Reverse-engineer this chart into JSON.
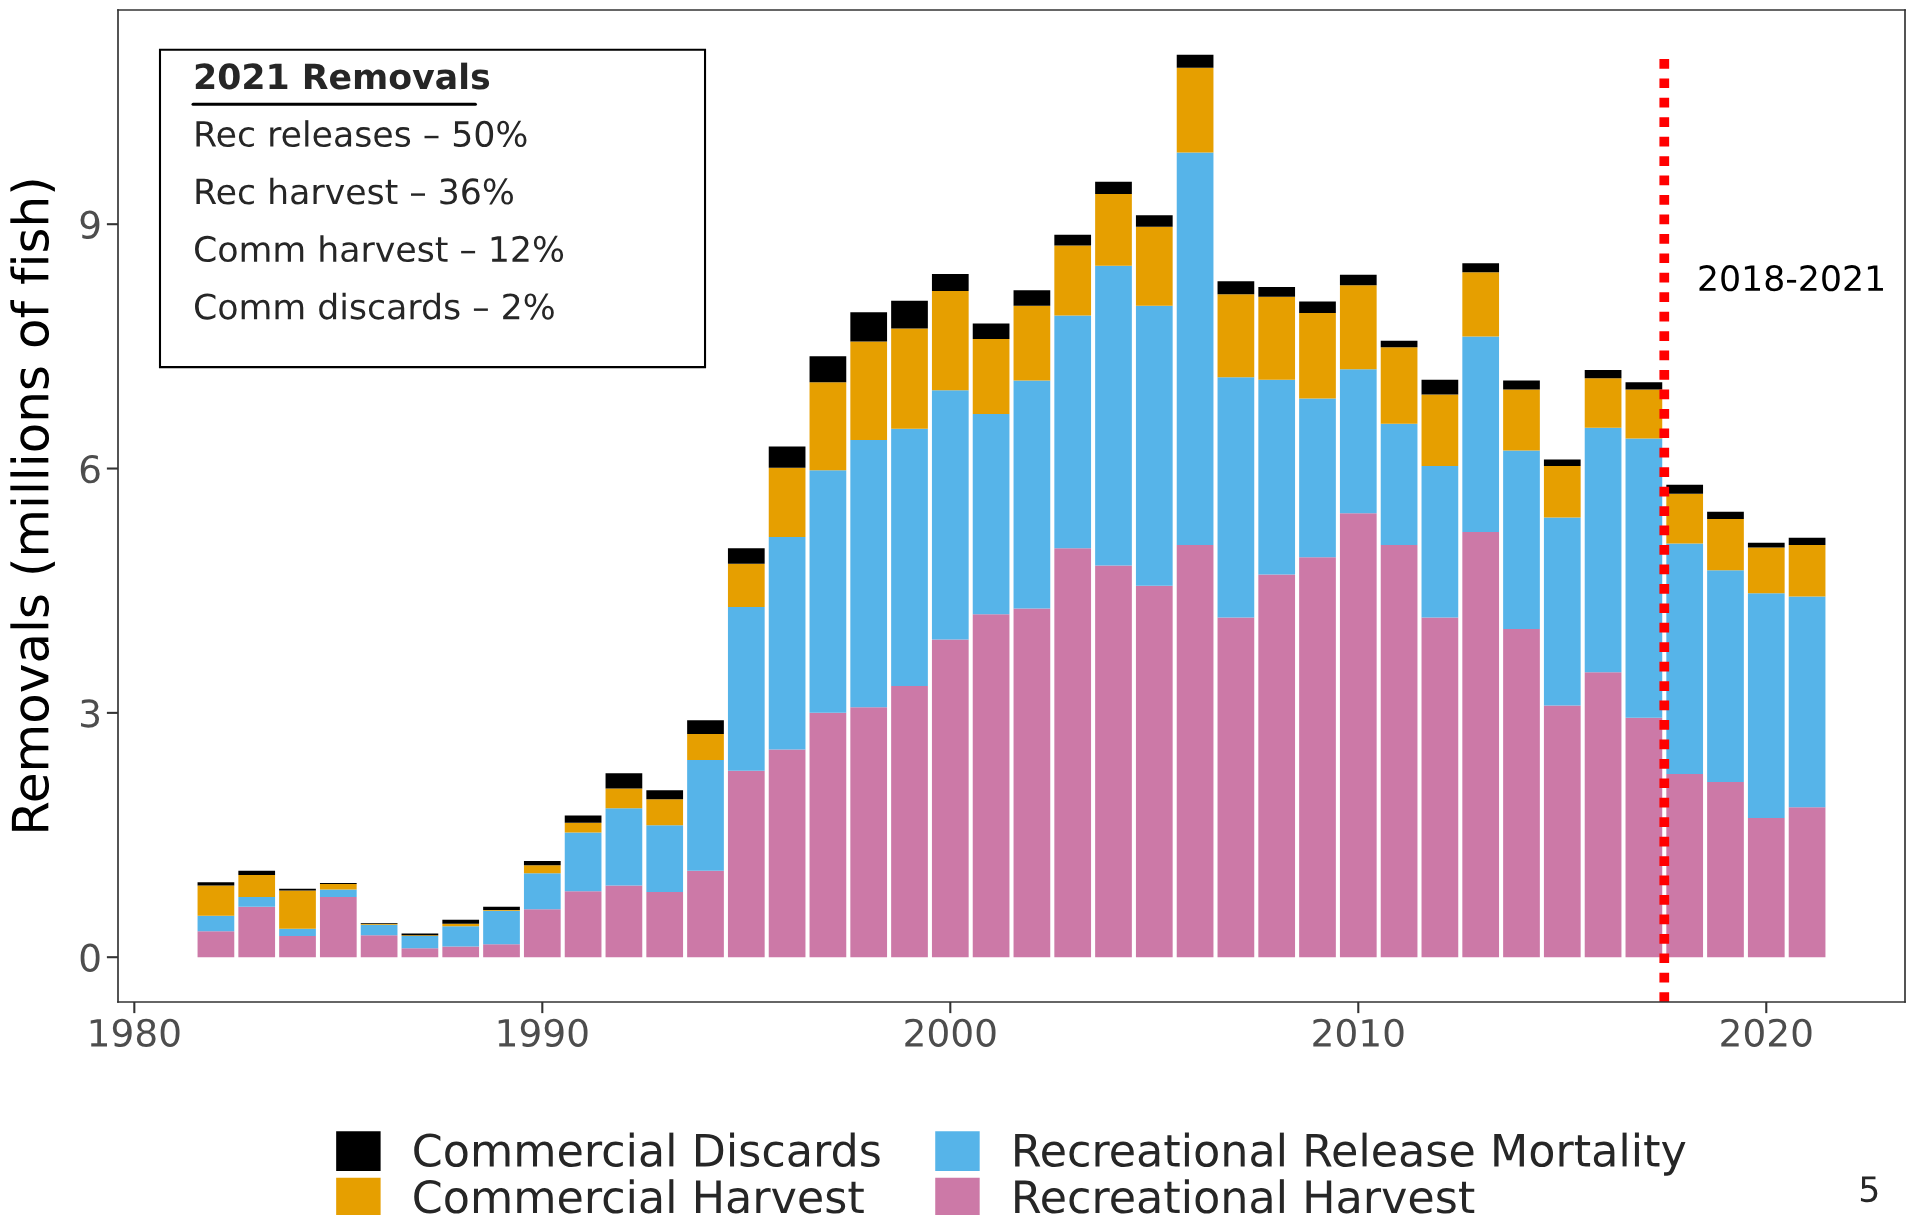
{
  "chart_data": {
    "type": "bar",
    "stacked": true,
    "ylabel": "Removals (millions of fish)",
    "x": [
      1982,
      1983,
      1984,
      1985,
      1986,
      1987,
      1988,
      1989,
      1990,
      1991,
      1992,
      1993,
      1994,
      1995,
      1996,
      1997,
      1998,
      1999,
      2000,
      2001,
      2002,
      2003,
      2004,
      2005,
      2006,
      2007,
      2008,
      2009,
      2010,
      2011,
      2012,
      2013,
      2014,
      2015,
      2016,
      2017,
      2018,
      2019,
      2020,
      2021
    ],
    "series": [
      {
        "name": "Recreational Harvest",
        "color": "#cc79a7",
        "values": [
          0.32,
          0.62,
          0.26,
          0.74,
          0.27,
          0.11,
          0.13,
          0.16,
          0.59,
          0.81,
          0.88,
          0.8,
          1.06,
          2.29,
          2.55,
          3.0,
          3.07,
          3.33,
          3.9,
          4.21,
          4.28,
          5.02,
          4.81,
          4.56,
          5.06,
          4.17,
          4.7,
          4.91,
          5.45,
          5.06,
          4.17,
          5.22,
          4.03,
          3.09,
          3.5,
          2.94,
          2.25,
          2.15,
          1.71,
          1.84
        ]
      },
      {
        "name": "Recreational Release Mortality",
        "color": "#56b4e9",
        "values": [
          0.19,
          0.12,
          0.09,
          0.09,
          0.13,
          0.15,
          0.25,
          0.41,
          0.44,
          0.72,
          0.95,
          0.82,
          1.36,
          2.01,
          2.61,
          2.98,
          3.28,
          3.16,
          3.06,
          2.46,
          2.8,
          2.86,
          3.68,
          3.44,
          4.82,
          2.95,
          2.39,
          1.95,
          1.77,
          1.49,
          1.86,
          2.4,
          2.19,
          2.31,
          3.0,
          3.43,
          2.83,
          2.6,
          2.76,
          2.59
        ]
      },
      {
        "name": "Commercial Harvest",
        "color": "#e69f00",
        "values": [
          0.37,
          0.27,
          0.47,
          0.07,
          0.01,
          0.01,
          0.03,
          0.01,
          0.1,
          0.12,
          0.24,
          0.32,
          0.32,
          0.53,
          0.85,
          1.08,
          1.21,
          1.23,
          1.22,
          0.92,
          0.92,
          0.86,
          0.88,
          0.97,
          1.04,
          1.02,
          1.02,
          1.05,
          1.03,
          0.94,
          0.88,
          0.79,
          0.75,
          0.63,
          0.61,
          0.6,
          0.61,
          0.63,
          0.56,
          0.63
        ]
      },
      {
        "name": "Commercial Discards",
        "color": "#000000",
        "values": [
          0.04,
          0.05,
          0.02,
          0.01,
          0.01,
          0.02,
          0.05,
          0.04,
          0.05,
          0.09,
          0.19,
          0.11,
          0.17,
          0.19,
          0.26,
          0.32,
          0.36,
          0.34,
          0.21,
          0.19,
          0.19,
          0.13,
          0.15,
          0.14,
          0.16,
          0.16,
          0.12,
          0.14,
          0.13,
          0.08,
          0.18,
          0.11,
          0.11,
          0.08,
          0.1,
          0.09,
          0.11,
          0.09,
          0.06,
          0.09
        ]
      }
    ],
    "xlim": [
      1979.6,
      2023.4
    ],
    "xticks": [
      1980,
      1990,
      2000,
      2010,
      2020
    ],
    "ylim": [
      -0.55,
      11.63
    ],
    "yticks": [
      0,
      3,
      6,
      9
    ],
    "ref_lines": [
      {
        "axis": "x",
        "value": 2017.5,
        "label": "2018-2021",
        "color": "#ff0000",
        "line_style": "dotted"
      }
    ],
    "annotations": [
      "2021 Removals",
      "Rec releases – 50%",
      "Rec harvest – 36%",
      "Comm harvest – 12%",
      "Comm discards – 2%",
      "5"
    ],
    "legend": "bottom"
  }
}
